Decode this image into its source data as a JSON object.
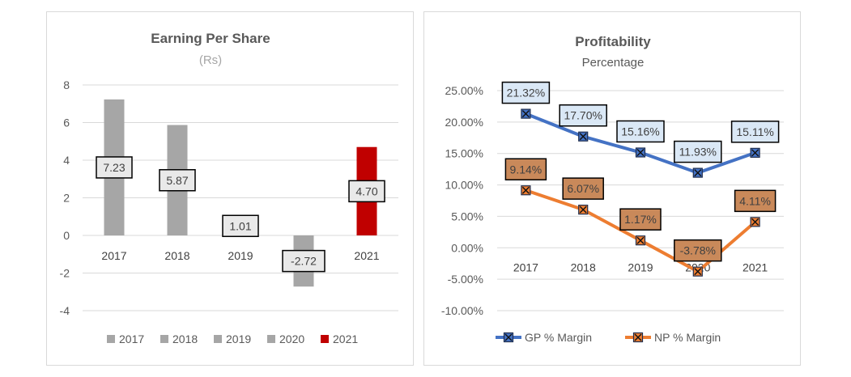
{
  "chart_data": [
    {
      "type": "bar",
      "title": "Earning Per Share",
      "subtitle": "(Rs)",
      "categories": [
        "2017",
        "2018",
        "2019",
        "2020",
        "2021"
      ],
      "values": [
        7.23,
        5.87,
        1.01,
        -2.72,
        4.7
      ],
      "data_labels": [
        "7.23",
        "5.87",
        "1.01",
        "-2.72",
        "4.70"
      ],
      "bar_colors": [
        "#a6a6a6",
        "#a6a6a6",
        "#a6a6a6",
        "#a6a6a6",
        "#c00000"
      ],
      "ylim": [
        -4,
        8
      ],
      "yticks": [
        "8",
        "6",
        "4",
        "2",
        "0",
        "-2",
        "-4"
      ],
      "ytick_values": [
        8,
        6,
        4,
        2,
        0,
        -2,
        -4
      ],
      "grid": true,
      "legend_position": "bottom",
      "legend": [
        "2017",
        "2018",
        "2019",
        "2020",
        "2021"
      ]
    },
    {
      "type": "line",
      "title": "Profitability",
      "subtitle": "Percentage",
      "categories": [
        "2017",
        "2018",
        "2019",
        "2020",
        "2021"
      ],
      "series": [
        {
          "name": "GP % Margin",
          "values": [
            21.32,
            17.7,
            15.16,
            11.93,
            15.11
          ],
          "labels": [
            "21.32%",
            "17.70%",
            "15.16%",
            "11.93%",
            "15.11%"
          ],
          "color": "#4472c4",
          "label_fill": "#dae8f6"
        },
        {
          "name": "NP % Margin",
          "values": [
            9.14,
            6.07,
            1.17,
            -3.78,
            4.11
          ],
          "labels": [
            "9.14%",
            "6.07%",
            "1.17%",
            "-3.78%",
            "4.11%"
          ],
          "color": "#ed7d31",
          "label_fill": "#c9895a"
        }
      ],
      "ylim": [
        -10,
        25
      ],
      "yticks": [
        "25.00%",
        "20.00%",
        "15.00%",
        "10.00%",
        "5.00%",
        "0.00%",
        "-5.00%",
        "-10.00%"
      ],
      "ytick_values": [
        25,
        20,
        15,
        10,
        5,
        0,
        -5,
        -10
      ],
      "grid": true,
      "legend_position": "bottom"
    }
  ]
}
